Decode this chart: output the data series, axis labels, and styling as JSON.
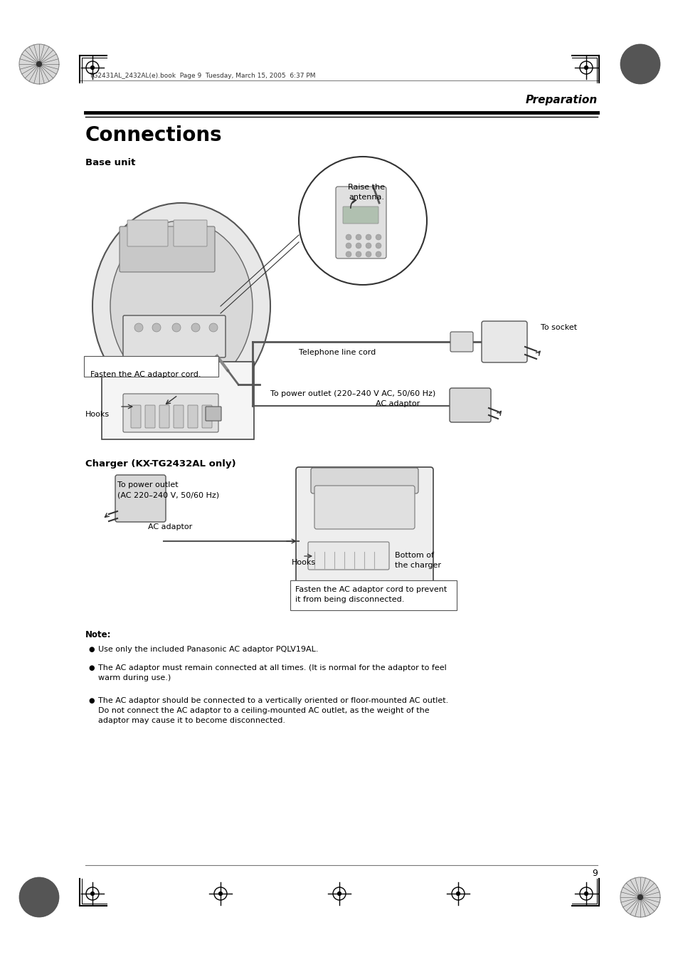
{
  "page_bg": "#ffffff",
  "header_file_text": "TG2431AL_2432AL(e).book  Page 9  Tuesday, March 15, 2005  6:37 PM",
  "section_title": "Preparation",
  "main_title": "Connections",
  "base_unit_label": "Base unit",
  "charger_label": "Charger (KX-TG2432AL only)",
  "note_label": "Note:",
  "bullet1": "Use only the included Panasonic AC adaptor PQLV19AL.",
  "bullet2_line1": "The AC adaptor must remain connected at all times. (It is normal for the adaptor to feel",
  "bullet2_line2": "warm during use.)",
  "bullet3_line1": "The AC adaptor should be connected to a vertically oriented or floor-mounted AC outlet.",
  "bullet3_line2": "Do not connect the AC adaptor to a ceiling-mounted AC outlet, as the weight of the",
  "bullet3_line3": "adaptor may cause it to become disconnected.",
  "callout_raise_line1": "Raise the",
  "callout_raise_line2": "antenna.",
  "callout_socket": "To socket",
  "callout_tel_cord": "Telephone line cord",
  "callout_power": "To power outlet (220–240 V AC, 50/60 Hz)",
  "callout_ac_adaptor": "AC adaptor",
  "callout_fasten": "Fasten the AC adaptor cord.",
  "callout_hooks": "Hooks",
  "callout_power2_line1": "To power outlet",
  "callout_power2_line2": "(AC 220–240 V, 50/60 Hz)",
  "callout_ac2": "AC adaptor",
  "callout_hooks2": "Hooks",
  "callout_bottom_line1": "Bottom of",
  "callout_bottom_line2": "the charger",
  "callout_fasten2_line1": "Fasten the AC adaptor cord to prevent",
  "callout_fasten2_line2": "it from being disconnected.",
  "page_number": "9"
}
